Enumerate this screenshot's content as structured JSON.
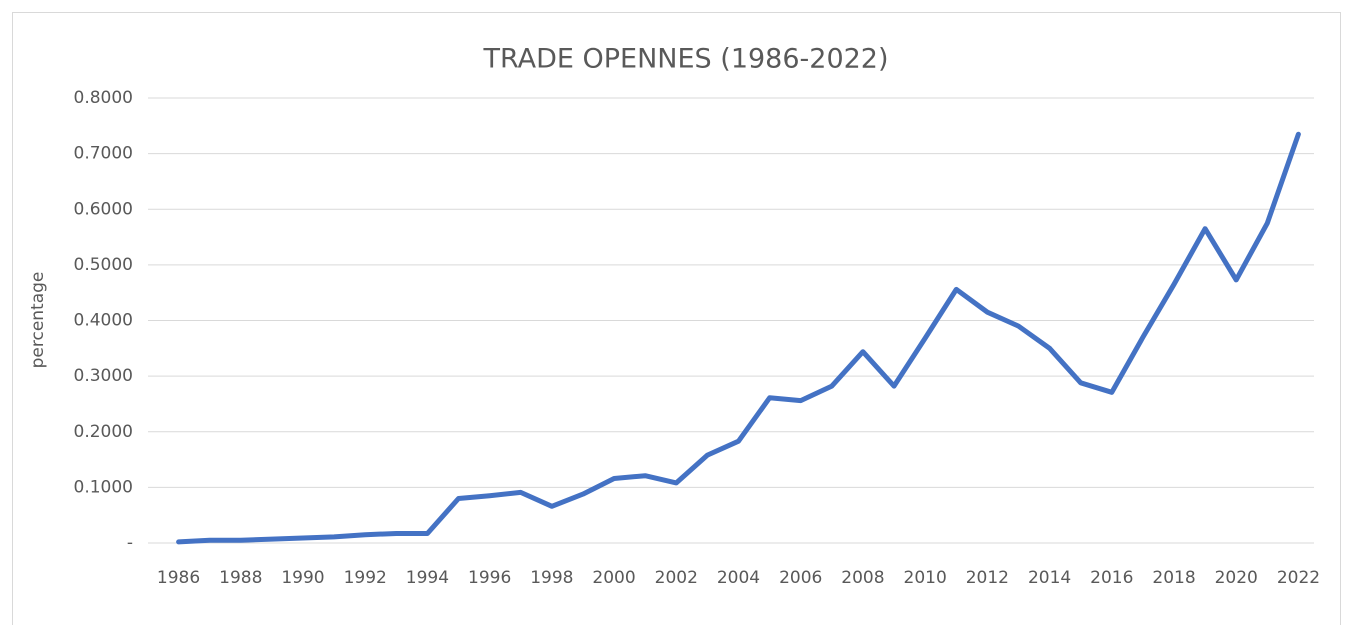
{
  "chart_data": {
    "type": "line",
    "title": "TRADE OPENNES (1986-2022)",
    "ylabel": "percentage",
    "categories": [
      "1986",
      null,
      "1988",
      null,
      "1990",
      null,
      "1992",
      null,
      "1994",
      null,
      "1996",
      null,
      "1998",
      null,
      "2000",
      null,
      "2002",
      null,
      "2004",
      null,
      "2006",
      null,
      "2008",
      null,
      "2010",
      null,
      "2012",
      null,
      "2014",
      null,
      "2016",
      null,
      "2018",
      null,
      "2020",
      null,
      "2022"
    ],
    "values": [
      0.002,
      0.005,
      0.005,
      0.007,
      0.009,
      0.011,
      0.015,
      0.017,
      0.017,
      0.08,
      0.085,
      0.091,
      0.066,
      0.088,
      0.116,
      0.121,
      0.108,
      0.158,
      0.183,
      0.261,
      0.256,
      0.282,
      0.344,
      0.282,
      0.368,
      0.456,
      0.415,
      0.39,
      0.35,
      0.288,
      0.271,
      0.37,
      0.465,
      0.565,
      0.473,
      0.575,
      0.735
    ],
    "color": "#4472c4",
    "ylim": [
      0,
      0.8
    ],
    "yticks": [
      {
        "value": 0,
        "label": "-"
      },
      {
        "value": 0.1,
        "label": "0.1000"
      },
      {
        "value": 0.2,
        "label": "0.2000"
      },
      {
        "value": 0.3,
        "label": "0.3000"
      },
      {
        "value": 0.4,
        "label": "0.4000"
      },
      {
        "value": 0.5,
        "label": "0.5000"
      },
      {
        "value": 0.6,
        "label": "0.6000"
      },
      {
        "value": 0.7,
        "label": "0.7000"
      },
      {
        "value": 0.8,
        "label": "0.8000"
      }
    ],
    "grid": true
  }
}
